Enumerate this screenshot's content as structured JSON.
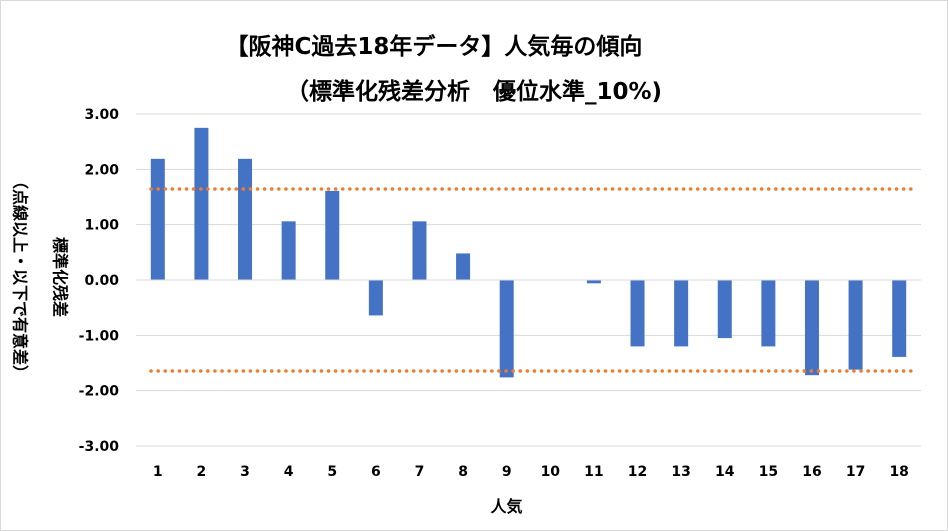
{
  "chart_data": {
    "type": "bar",
    "title": "【阪神C過去18年データ】人気毎の傾向",
    "subtitle": "（標準化残差分析　優位水準_10%)",
    "xlabel": "人気",
    "ylabel": "標準化残差",
    "ylabel_note": "（点線以上・以下で有意差）",
    "categories": [
      "1",
      "2",
      "3",
      "4",
      "5",
      "6",
      "7",
      "8",
      "9",
      "10",
      "11",
      "12",
      "13",
      "14",
      "15",
      "16",
      "17",
      "18"
    ],
    "series": [
      {
        "values": [
          2.19,
          2.75,
          2.19,
          1.06,
          1.61,
          -0.64,
          1.06,
          0.48,
          -1.76,
          0.0,
          -0.06,
          -1.2,
          -1.2,
          -1.05,
          -1.2,
          -1.72,
          -1.62,
          -1.39
        ],
        "color": "#4472c4"
      }
    ],
    "reference_lines": [
      {
        "value": 1.645,
        "color": "#ed7d31",
        "style": "dotted"
      },
      {
        "value": -1.645,
        "color": "#ed7d31",
        "style": "dotted"
      }
    ],
    "ylim": [
      -3,
      3
    ],
    "yticks": [
      "3.00",
      "2.00",
      "1.00",
      "0.00",
      "-1.00",
      "-2.00",
      "-3.00"
    ],
    "ytick_values": [
      3,
      2,
      1,
      0,
      -1,
      -2,
      -3
    ],
    "grid": true,
    "legend": "none"
  }
}
